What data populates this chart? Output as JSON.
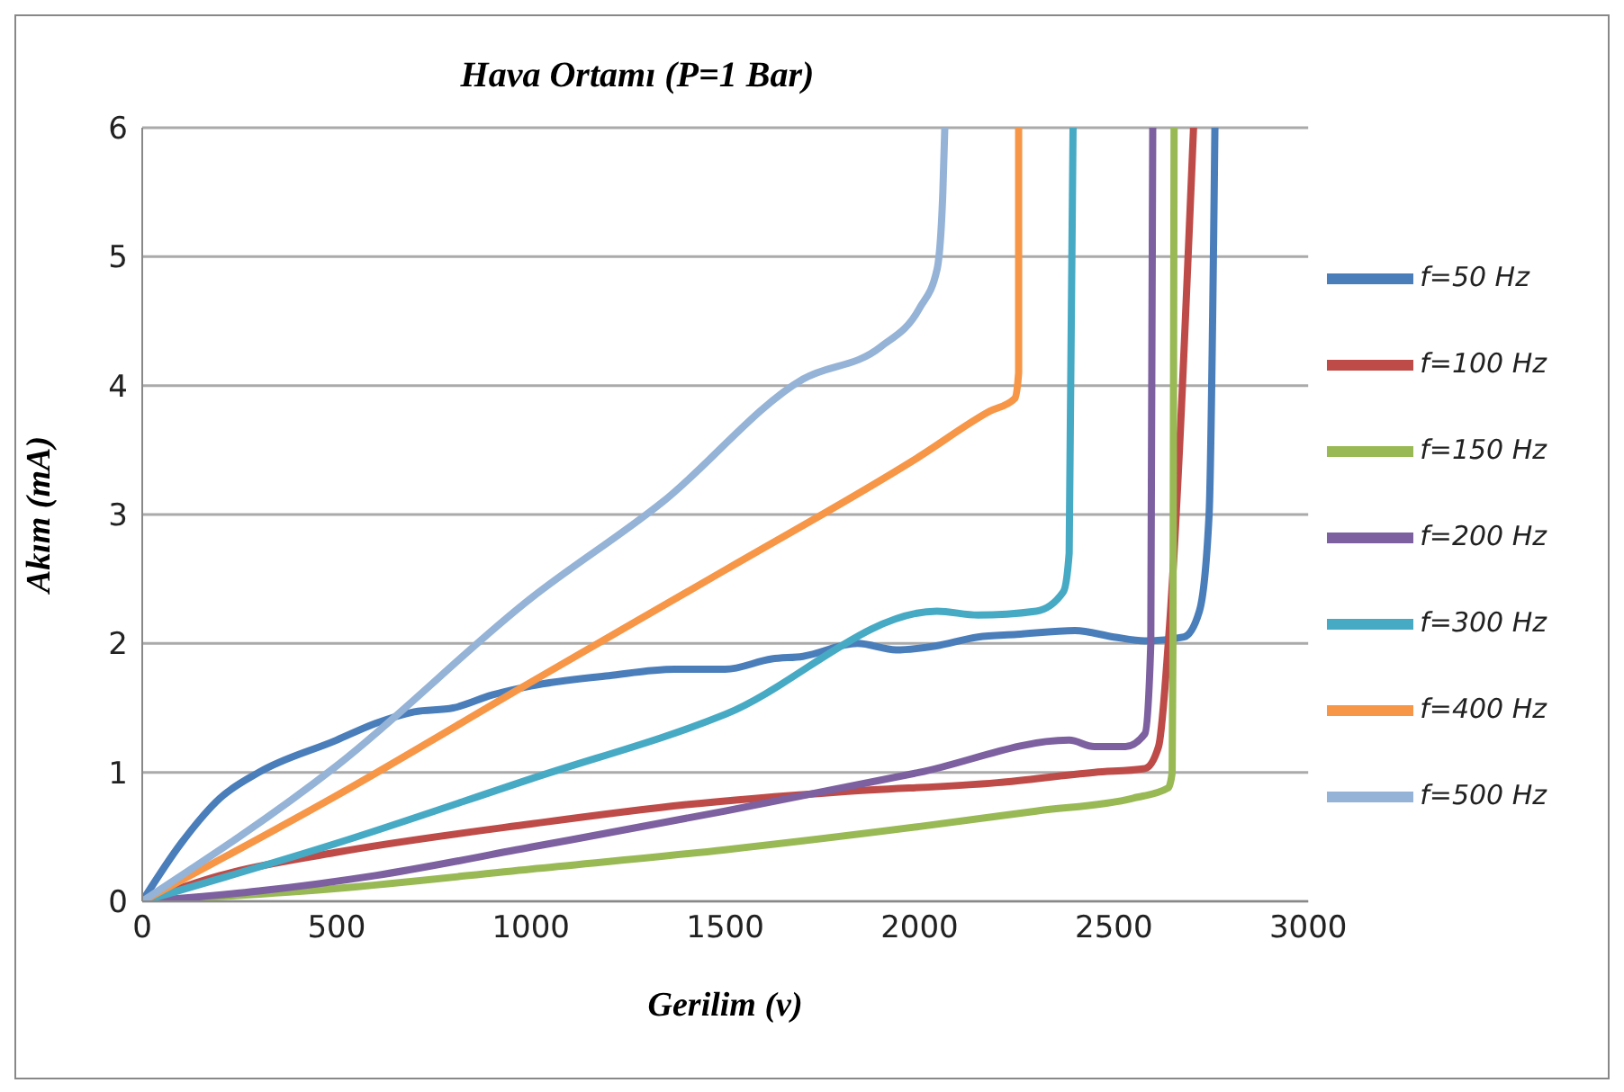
{
  "chart_data": {
    "type": "line",
    "title": "Hava Ortamı (P=1 Bar)",
    "xlabel": "Gerilim (v)",
    "ylabel": "Akım (mA)",
    "xlim": [
      0,
      3000
    ],
    "xticks": [
      0,
      500,
      1000,
      1500,
      2000,
      2500,
      3000
    ],
    "ylim": [
      0,
      6
    ],
    "yticks": [
      0,
      1,
      2,
      3,
      4,
      5,
      6
    ],
    "grid": "y",
    "legend": "right",
    "marker": "none",
    "line_style": "solid",
    "series": [
      {
        "name": "f=50 Hz",
        "color": "#4a7ebb",
        "x": [
          0,
          100,
          200,
          300,
          500,
          600,
          700,
          800,
          900,
          1000,
          1200,
          1370,
          1500,
          1620,
          1700,
          1840,
          1940,
          2040,
          2150,
          2250,
          2400,
          2500,
          2580,
          2680,
          2720,
          2745,
          2760
        ],
        "values": [
          0,
          0.45,
          0.8,
          1.0,
          1.25,
          1.38,
          1.47,
          1.5,
          1.6,
          1.67,
          1.75,
          1.8,
          1.8,
          1.88,
          1.9,
          2.0,
          1.95,
          1.98,
          2.05,
          2.07,
          2.1,
          2.05,
          2.02,
          2.05,
          2.25,
          3,
          6
        ]
      },
      {
        "name": "f=100 Hz",
        "color": "#be4b48",
        "x": [
          0,
          200,
          500,
          1000,
          1400,
          1800,
          2200,
          2450,
          2580,
          2615,
          2640,
          2705
        ],
        "values": [
          0,
          0.2,
          0.38,
          0.6,
          0.75,
          0.85,
          0.92,
          1.0,
          1.03,
          1.2,
          2,
          6
        ]
      },
      {
        "name": "f=150 Hz",
        "color": "#98b954",
        "x": [
          0,
          500,
          1000,
          1500,
          2000,
          2300,
          2550,
          2640,
          2650,
          2652,
          2655
        ],
        "values": [
          0,
          0.1,
          0.25,
          0.4,
          0.58,
          0.7,
          0.8,
          0.88,
          1.0,
          2,
          6
        ]
      },
      {
        "name": "f=200 Hz",
        "color": "#7d60a0",
        "x": [
          0,
          300,
          600,
          1000,
          1500,
          2000,
          2385,
          2450,
          2530,
          2580,
          2595,
          2600
        ],
        "values": [
          0,
          0.08,
          0.2,
          0.42,
          0.7,
          1.0,
          1.25,
          1.2,
          1.2,
          1.3,
          2,
          6
        ]
      },
      {
        "name": "f=300 Hz",
        "color": "#46aac5",
        "x": [
          0,
          500,
          1000,
          1500,
          2045,
          2150,
          2300,
          2370,
          2385,
          2395
        ],
        "values": [
          0,
          0.45,
          0.95,
          1.45,
          2.25,
          2.22,
          2.25,
          2.4,
          2.7,
          6
        ]
      },
      {
        "name": "f=400 Hz",
        "color": "#f79646",
        "x": [
          0,
          500,
          1000,
          1500,
          2000,
          2180,
          2245,
          2255,
          2255
        ],
        "values": [
          0,
          0.82,
          1.7,
          2.57,
          3.45,
          3.8,
          3.9,
          4.1,
          6
        ]
      },
      {
        "name": "f=500 Hz",
        "color": "#95b3d7",
        "x": [
          0,
          500,
          1000,
          1340,
          1700,
          1900,
          2000,
          2045,
          2060,
          2065
        ],
        "values": [
          0,
          1.05,
          2.35,
          3.1,
          4.05,
          4.3,
          4.6,
          4.9,
          5.5,
          6
        ]
      }
    ]
  }
}
